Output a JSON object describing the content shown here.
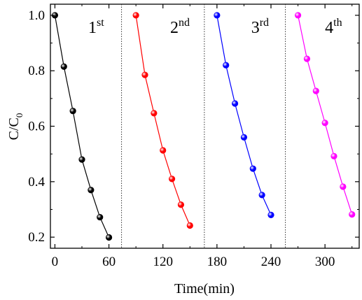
{
  "chart_data": {
    "type": "scatter",
    "xlabel": "Time(min)",
    "ylabel": {
      "main": "C/C",
      "sub": "0"
    },
    "xlim": [
      -5,
      338
    ],
    "ylim": [
      0.16,
      1.04
    ],
    "xticks": [
      0,
      60,
      120,
      180,
      240,
      300
    ],
    "yticks": [
      0.2,
      0.4,
      0.6,
      0.8,
      1.0
    ],
    "yticklabels": [
      "0.2",
      "0.4",
      "0.6",
      "0.8",
      "1.0"
    ],
    "dividers_x": [
      74,
      166,
      256
    ],
    "series": [
      {
        "name": "1st",
        "label": {
          "num": "1",
          "sup": "st",
          "x": 37
        },
        "color": "#000000",
        "x": [
          0,
          10,
          20,
          30,
          40,
          50,
          60
        ],
        "y": [
          1.0,
          0.815,
          0.655,
          0.48,
          0.37,
          0.272,
          0.199
        ]
      },
      {
        "name": "2nd",
        "label": {
          "num": "2",
          "sup": "nd",
          "x": 128
        },
        "color": "#ff0000",
        "x": [
          90,
          100,
          110,
          120,
          130,
          140,
          150
        ],
        "y": [
          1.0,
          0.785,
          0.647,
          0.513,
          0.41,
          0.317,
          0.242
        ]
      },
      {
        "name": "3rd",
        "label": {
          "num": "3",
          "sup": "rd",
          "x": 218
        },
        "color": "#0000ff",
        "x": [
          180,
          190,
          200,
          210,
          220,
          230,
          240
        ],
        "y": [
          1.0,
          0.82,
          0.682,
          0.56,
          0.447,
          0.352,
          0.28
        ]
      },
      {
        "name": "4th",
        "label": {
          "num": "4",
          "sup": "th",
          "x": 300
        },
        "color": "#ff00ff",
        "x": [
          270,
          280,
          290,
          300,
          310,
          320,
          330
        ],
        "y": [
          1.0,
          0.843,
          0.727,
          0.612,
          0.492,
          0.382,
          0.282
        ]
      }
    ]
  }
}
